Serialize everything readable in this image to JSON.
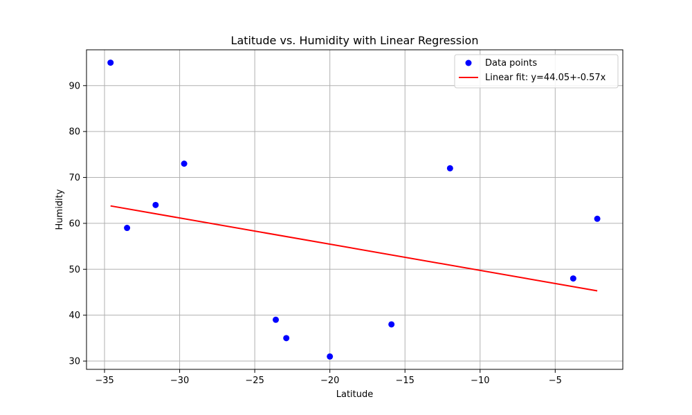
{
  "chart_data": {
    "type": "scatter",
    "title": "Latitude vs. Humidity with Linear Regression",
    "xlabel": "Latitude",
    "ylabel": "Humidity",
    "xlim": [
      -36.2,
      -0.5
    ],
    "ylim": [
      28.2,
      97.8
    ],
    "xticks": [
      -35,
      -30,
      -25,
      -20,
      -15,
      -10,
      -5
    ],
    "xtick_labels": [
      "−35",
      "−30",
      "−25",
      "−20",
      "−15",
      "−10",
      "−5"
    ],
    "yticks": [
      30,
      40,
      50,
      60,
      70,
      80,
      90
    ],
    "ytick_labels": [
      "30",
      "40",
      "50",
      "60",
      "70",
      "80",
      "90"
    ],
    "grid": true,
    "legend_position": "top-right",
    "series": [
      {
        "name": "Data points",
        "kind": "scatter",
        "color": "#0000ff",
        "x": [
          -34.6,
          -33.5,
          -31.6,
          -29.7,
          -23.6,
          -22.9,
          -20.0,
          -15.9,
          -12.0,
          -3.8,
          -2.2
        ],
        "y": [
          95,
          59,
          64,
          73,
          39,
          35,
          31,
          38,
          72,
          48,
          61
        ]
      },
      {
        "name": "Linear fit: y=44.05+-0.57x",
        "kind": "line",
        "color": "#ff0000",
        "x": [
          -34.6,
          -2.2
        ],
        "y": [
          63.8,
          45.3
        ]
      }
    ]
  }
}
